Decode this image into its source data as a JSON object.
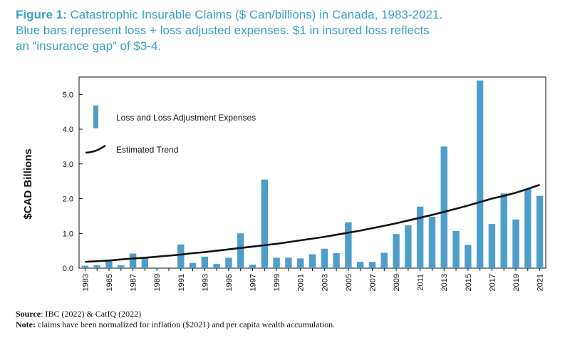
{
  "caption": {
    "label": "Figure 1:",
    "text": " Catastrophic Insurable Claims ($ Can/billions) in Canada, 1983-2021.  Blue bars represent loss + loss adjusted expenses.  $1 in insured loss reflects an “insurance gap” of $3-4."
  },
  "footer": {
    "source_label": "Source",
    "source_text": ": IBC (2022) & CatIQ (2022)",
    "note_label": "Note:",
    "note_text": " claims have been normalized for inflation ($2021) and per capita wealth accumulation."
  },
  "colors": {
    "bar": "#4f9ec9",
    "trend": "#111111",
    "caption": "#3aa0c8"
  },
  "chart_data": {
    "type": "bar",
    "title": "",
    "xlabel": "",
    "ylabel": "$CAD Billions",
    "ylim": [
      0,
      5.5
    ],
    "yticks": [
      "0.0",
      "1.0",
      "2.0",
      "3.0",
      "4.0",
      "5.0"
    ],
    "ytick_values": [
      0,
      1,
      2,
      3,
      4,
      5
    ],
    "grid": false,
    "legend_position": "top-left",
    "x": [
      1983,
      1984,
      1985,
      1986,
      1987,
      1988,
      1989,
      1990,
      1991,
      1992,
      1993,
      1994,
      1995,
      1996,
      1997,
      1998,
      1999,
      2000,
      2001,
      2002,
      2003,
      2004,
      2005,
      2006,
      2007,
      2008,
      2009,
      2010,
      2011,
      2012,
      2013,
      2014,
      2015,
      2016,
      2017,
      2018,
      2019,
      2020,
      2021
    ],
    "xtick_labels": [
      "1983",
      "1985",
      "1987",
      "1989",
      "1991",
      "1993",
      "1995",
      "1997",
      "1999",
      "2001",
      "2003",
      "2005",
      "2007",
      "2009",
      "2011",
      "2013",
      "2015",
      "2017",
      "2019",
      "2021"
    ],
    "series": [
      {
        "name": "Loss and Loss Adjustment Expenses",
        "type": "bar",
        "values": [
          0.07,
          0.08,
          0.2,
          0.08,
          0.42,
          0.3,
          0.02,
          0.02,
          0.68,
          0.15,
          0.33,
          0.12,
          0.3,
          1.0,
          0.1,
          2.55,
          0.3,
          0.3,
          0.28,
          0.4,
          0.56,
          0.43,
          1.32,
          0.18,
          0.18,
          0.44,
          0.98,
          1.23,
          1.77,
          1.48,
          3.5,
          1.07,
          0.67,
          5.4,
          1.27,
          2.15,
          1.4,
          2.28,
          2.08
        ]
      },
      {
        "name": "Estimated Trend",
        "type": "line",
        "values": [
          0.18,
          0.2,
          0.22,
          0.25,
          0.28,
          0.3,
          0.33,
          0.36,
          0.39,
          0.43,
          0.46,
          0.5,
          0.54,
          0.58,
          0.62,
          0.66,
          0.7,
          0.75,
          0.8,
          0.85,
          0.9,
          0.96,
          1.02,
          1.08,
          1.15,
          1.22,
          1.29,
          1.37,
          1.45,
          1.53,
          1.62,
          1.71,
          1.8,
          1.9,
          2.0,
          2.08,
          2.17,
          2.28,
          2.4
        ]
      }
    ]
  }
}
